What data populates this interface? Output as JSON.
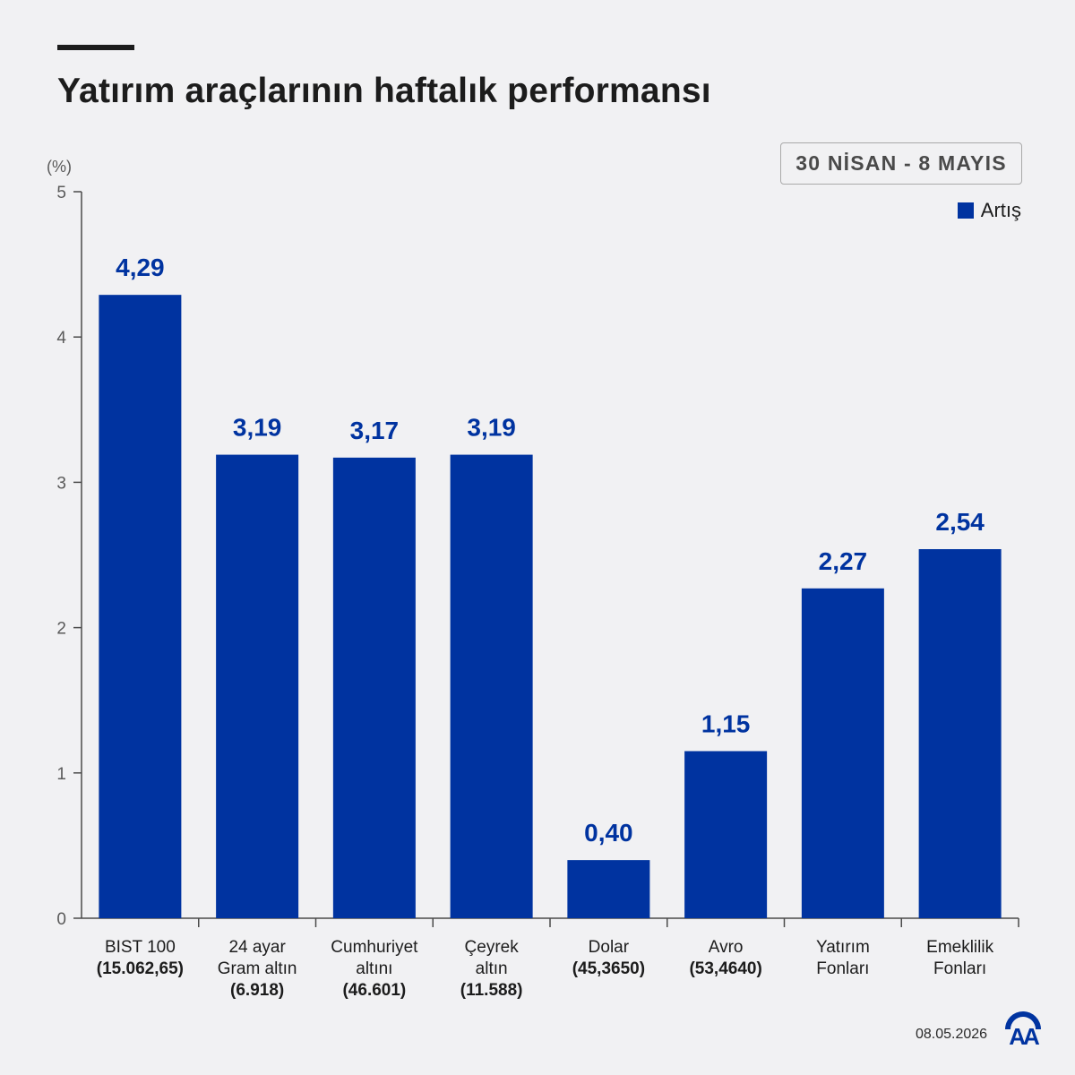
{
  "title": "Yatırım araçlarının haftalık performansı",
  "date_range": "30 NİSAN - 8 MAYIS",
  "footer_date": "08.05.2026",
  "logo_text": "AA",
  "colors": {
    "bar": "#0033a0",
    "value_label": "#0033a0",
    "axis": "#4a4a4a",
    "background": "#f1f1f3"
  },
  "chart_data": {
    "type": "bar",
    "unit_label": "(%)",
    "ylim": [
      0,
      5
    ],
    "yticks": [
      "0",
      "1",
      "2",
      "3",
      "4",
      "5"
    ],
    "grid": false,
    "legend_position": "top-right",
    "series": [
      {
        "name": "Artış",
        "values": [
          4.29,
          3.19,
          3.17,
          3.19,
          0.4,
          1.15,
          2.27,
          2.54
        ],
        "labels": [
          "4,29",
          "3,19",
          "3,17",
          "3,19",
          "0,40",
          "1,15",
          "2,27",
          "2,54"
        ]
      }
    ],
    "categories": [
      [
        "BIST 100",
        "(15.062,65)"
      ],
      [
        "24 ayar",
        "Gram altın",
        "(6.918)"
      ],
      [
        "Cumhuriyet",
        "altını",
        "(46.601)"
      ],
      [
        "Çeyrek",
        "altın",
        "(11.588)"
      ],
      [
        "Dolar",
        "(45,3650)"
      ],
      [
        "Avro",
        "(53,4640)"
      ],
      [
        "Yatırım",
        "Fonları"
      ],
      [
        "Emeklilik",
        "Fonları"
      ]
    ]
  }
}
